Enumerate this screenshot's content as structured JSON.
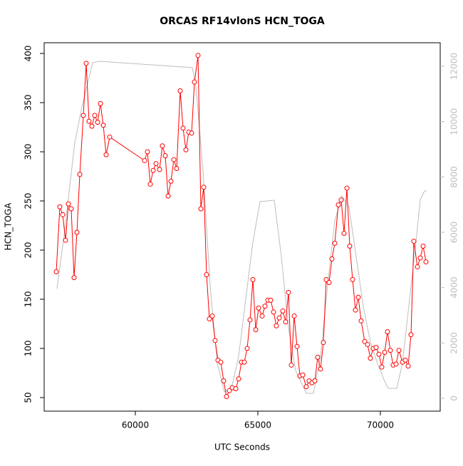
{
  "chart_data": {
    "type": "line",
    "title": "ORCAS RF14vlonS HCN_TOGA",
    "xlabel": "UTC Seconds",
    "ylabel": "HCN_TOGA",
    "xlim": [
      56279,
      72442
    ],
    "ylim": [
      36.2,
      410.9
    ],
    "y2lim": [
      -464,
      12850
    ],
    "xticks": [
      60000,
      65000,
      70000
    ],
    "yticks": [
      50,
      100,
      150,
      200,
      250,
      300,
      350,
      400
    ],
    "y2ticks": [
      0,
      2000,
      4000,
      6000,
      8000,
      10000,
      12000
    ],
    "series": [
      {
        "color": "#ff0000",
        "marker": "circle",
        "x": [
          56773,
          56918,
          57035,
          57151,
          57267,
          57384,
          57500,
          57616,
          57733,
          57878,
          57994,
          58110,
          58227,
          58343,
          58459,
          58576,
          58692,
          58808,
          58953,
          60378,
          60494,
          60610,
          60727,
          60843,
          60988,
          61104,
          61221,
          61337,
          61453,
          61570,
          61686,
          61831,
          61948,
          62064,
          62180,
          62297,
          62413,
          62558,
          62674,
          62791,
          62907,
          63023,
          63140,
          63256,
          63372,
          63489,
          63605,
          63721,
          63838,
          63954,
          64099,
          64215,
          64331,
          64448,
          64564,
          64680,
          64797,
          64913,
          65029,
          65175,
          65291,
          65407,
          65523,
          65640,
          65756,
          65872,
          66017,
          66134,
          66250,
          66366,
          66483,
          66599,
          66715,
          66831,
          66977,
          67093,
          67209,
          67326,
          67442,
          67558,
          67675,
          67791,
          67907,
          68023,
          68140,
          68285,
          68401,
          68517,
          68634,
          68750,
          68866,
          68983,
          69099,
          69215,
          69360,
          69477,
          69593,
          69709,
          69826,
          69942,
          70058,
          70174,
          70291,
          70407,
          70523,
          70640,
          70756,
          70901,
          71017,
          71134,
          71250,
          71366,
          71512,
          71628,
          71744,
          71861
        ],
        "values": [
          178,
          244,
          236,
          210,
          247,
          242,
          172,
          218,
          277,
          337,
          390,
          331,
          326,
          337,
          330,
          349,
          327,
          297,
          315,
          291,
          300,
          267,
          281,
          288,
          282,
          306,
          296,
          255,
          270,
          292,
          283,
          362,
          324,
          302,
          320,
          319,
          371,
          398,
          242,
          264,
          175,
          130,
          133,
          108,
          88,
          86,
          67,
          51,
          57,
          60,
          59,
          69,
          86,
          86,
          100,
          129,
          170,
          119,
          141,
          133,
          143,
          149,
          149,
          137,
          123,
          131,
          138,
          127,
          157,
          83,
          133,
          102,
          72,
          73,
          61,
          67,
          65,
          67,
          91,
          79,
          106,
          170,
          167,
          191,
          207,
          246,
          251,
          217,
          263,
          204,
          170,
          139,
          152,
          128,
          107,
          104,
          90,
          100,
          101,
          94,
          81,
          96,
          117,
          98,
          83,
          84,
          98,
          86,
          88,
          82,
          114,
          209,
          183,
          192,
          204,
          188
        ]
      },
      {
        "color": "#bebebe",
        "axis": "y2",
        "x": [
          56802,
          57093,
          57529,
          57820,
          58256,
          58547,
          62326,
          62471,
          62762,
          63052,
          63343,
          63634,
          63925,
          64215,
          64506,
          64797,
          65087,
          65669,
          65959,
          66250,
          66541,
          66977,
          67268,
          67558,
          67849,
          68140,
          68430,
          68721,
          69012,
          69302,
          69593,
          69884,
          70174,
          70320,
          70669,
          70901,
          71192,
          71483,
          71628,
          71803,
          71890
        ],
        "values": [
          3966,
          5897,
          9245,
          10533,
          12130,
          12181,
          11950,
          11306,
          8215,
          4095,
          1262,
          232,
          360,
          1519,
          3580,
          5640,
          7108,
          7159,
          5125,
          2550,
          1004,
          180,
          180,
          1519,
          4095,
          6413,
          7314,
          6928,
          5125,
          3322,
          2035,
          1262,
          618,
          360,
          360,
          1262,
          3580,
          5897,
          7185,
          7494,
          7494
        ]
      }
    ]
  }
}
